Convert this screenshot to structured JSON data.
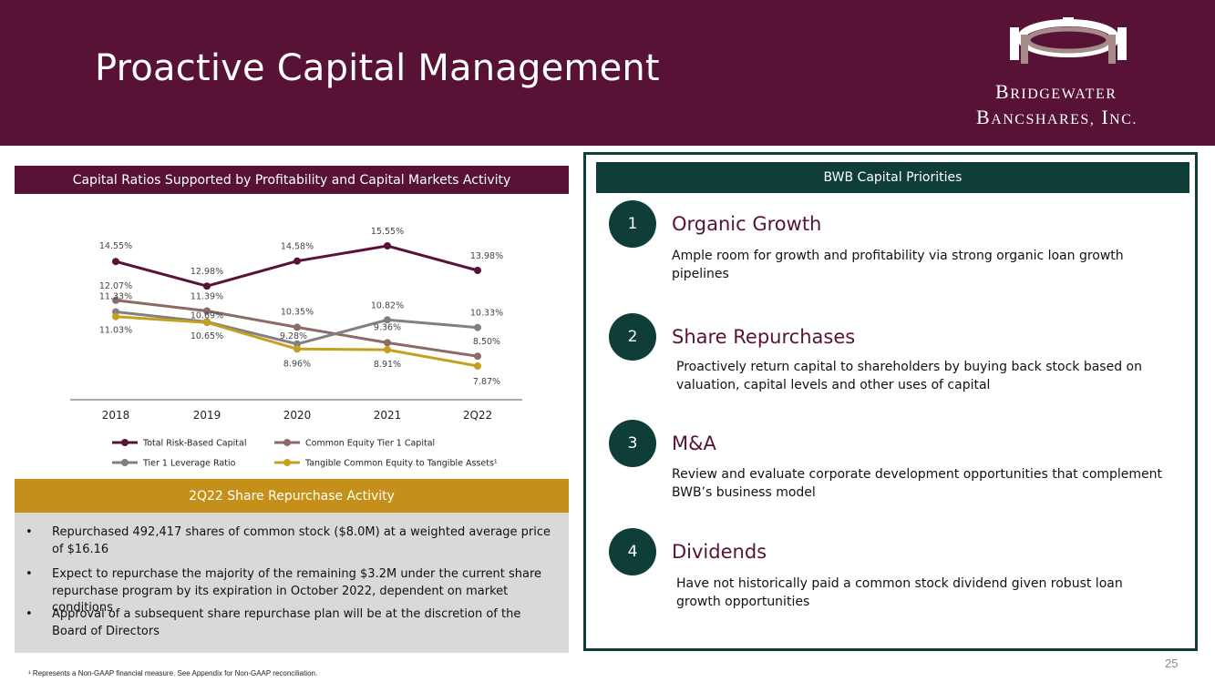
{
  "header": {
    "title": "Proactive Capital Management",
    "logo_line1": "Bridgewater",
    "logo_line2": "Bancshares, Inc."
  },
  "chart_section": {
    "title": "Capital Ratios Supported by Profitability and Capital Markets Activity"
  },
  "chart_data": {
    "type": "line",
    "categories": [
      "2018",
      "2019",
      "2020",
      "2021",
      "2Q22"
    ],
    "ylim": [
      7,
      16
    ],
    "series": [
      {
        "name": "Total Risk-Based Capital",
        "color": "#571235",
        "values": [
          14.55,
          12.98,
          14.58,
          15.55,
          13.98
        ],
        "labels": [
          "14.55%",
          "12.98%",
          "14.58%",
          "15.55%",
          "13.98%"
        ]
      },
      {
        "name": "Common Equity Tier 1 Capital",
        "color": "#8b6a67",
        "values": [
          12.07,
          11.39,
          10.35,
          9.36,
          8.5
        ],
        "labels": [
          "12.07%",
          "11.39%",
          "10.35%",
          "9.36%",
          "8.50%"
        ]
      },
      {
        "name": "Tier 1 Leverage Ratio",
        "color": "#808080",
        "values": [
          11.33,
          10.69,
          9.28,
          10.82,
          10.33
        ],
        "labels": [
          "11.33%",
          "10.69%",
          "9.28%",
          "10.82%",
          "10.33%"
        ]
      },
      {
        "name": "Tangible Common Equity to Tangible Assets¹",
        "color": "#c4a01c",
        "values": [
          11.03,
          10.65,
          8.96,
          8.91,
          7.87
        ],
        "labels": [
          "11.03%",
          "10.65%",
          "8.96%",
          "8.91%",
          "7.87%"
        ]
      }
    ]
  },
  "repurchase": {
    "title": "2Q22 Share Repurchase Activity",
    "bullet_char": "•",
    "bullets": [
      "Repurchased 492,417 shares of common stock ($8.0M) at a weighted average price of $16.16",
      "Expect to repurchase the majority of the remaining $3.2M under the current share repurchase program by its expiration in October 2022, dependent on market conditions",
      "Approval of a subsequent share repurchase plan will be at the discretion of the Board of Directors"
    ]
  },
  "footnote": "¹ Represents a Non-GAAP financial measure. See Appendix for Non-GAAP reconciliation.",
  "priorities": {
    "title": "BWB Capital Priorities",
    "items": [
      {
        "num": "1",
        "title": "Organic Growth",
        "desc": "Ample room for growth and profitability via strong organic loan growth pipelines"
      },
      {
        "num": "2",
        "title": "Share Repurchases",
        "desc": "Proactively return capital to shareholders by buying back stock based on valuation, capital levels and other uses of capital"
      },
      {
        "num": "3",
        "title": "M&A",
        "desc": "Review and evaluate corporate development opportunities that complement BWB’s business model"
      },
      {
        "num": "4",
        "title": "Dividends",
        "desc": "Have not historically paid a common stock dividend given robust loan growth opportunities"
      }
    ]
  },
  "page_number": "25",
  "colors": {
    "maroon": "#571235",
    "gold": "#c4901a",
    "teal": "#0f3d38",
    "gray_bg": "#d9d9d9"
  }
}
